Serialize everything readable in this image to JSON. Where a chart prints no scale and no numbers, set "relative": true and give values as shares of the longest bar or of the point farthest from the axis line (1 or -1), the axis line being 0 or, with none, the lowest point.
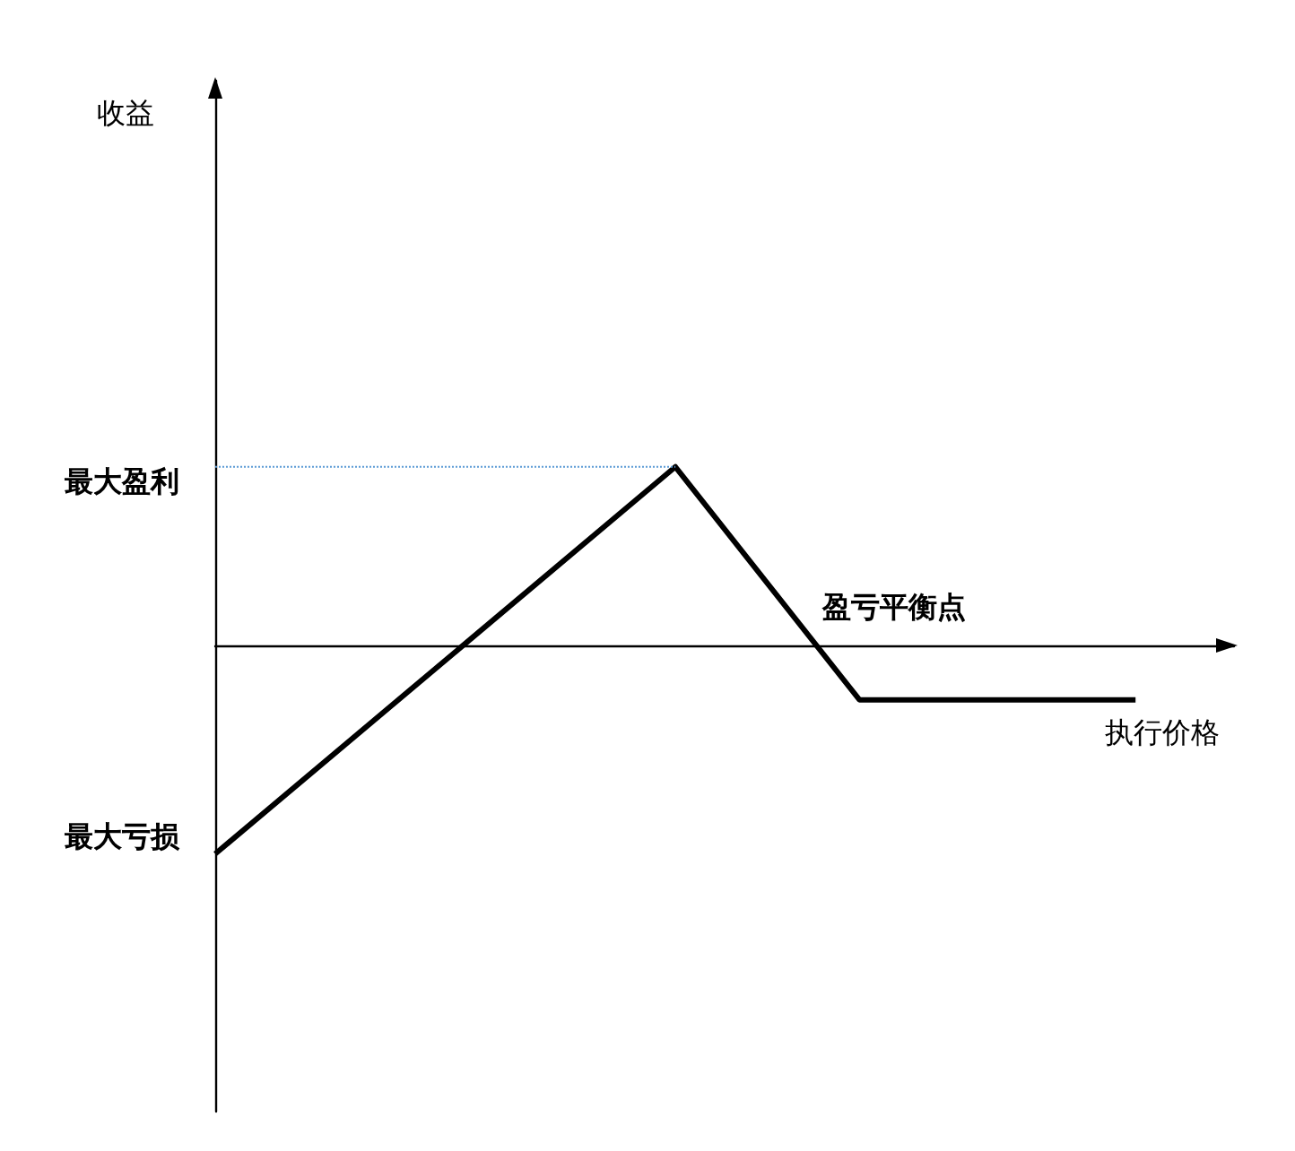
{
  "chart_data": {
    "type": "line",
    "relative": true,
    "xlabel": "执行价格",
    "categories": [
      null,
      null,
      null,
      null,
      null,
      null,
      null,
      null,
      null,
      null,
      null
    ],
    "series": [
      {
        "color": "#000000",
        "values": [
          -1,
          null,
          null,
          null,
          null,
          0.862,
          null,
          -0.259,
          null,
          null,
          -0.259
        ]
      }
    ],
    "ref_lines": [
      {
        "axis": "y",
        "value": 0.862,
        "label": "最大盈利",
        "color": "#5b9bd5",
        "line_style": "dotted"
      }
    ],
    "annotations": [
      "收益",
      "最大亏损",
      "盈亏平衡点"
    ],
    "marker": "none",
    "line_style": "solid"
  }
}
